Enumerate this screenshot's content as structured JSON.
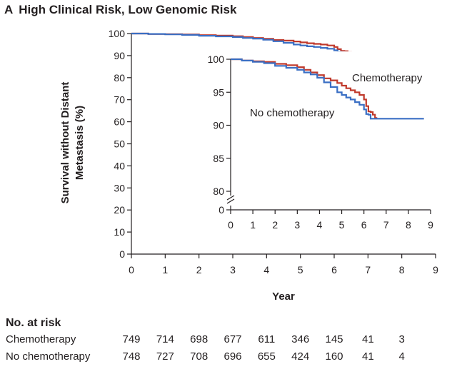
{
  "panel": {
    "letter": "A",
    "title": "High Clinical Risk, Low Genomic Risk"
  },
  "chart_data": {
    "type": "line",
    "title": "High Clinical Risk, Low Genomic Risk",
    "xlabel": "Year",
    "ylabel_lines": [
      "Survival without Distant",
      "Metastasis (%)"
    ],
    "xlim": [
      0,
      9
    ],
    "ylim": [
      0,
      100
    ],
    "xticks": [
      0,
      1,
      2,
      3,
      4,
      5,
      6,
      7,
      8,
      9
    ],
    "yticks": [
      0,
      10,
      20,
      30,
      40,
      50,
      60,
      70,
      80,
      90,
      100
    ],
    "grid": false,
    "colors": {
      "Chemotherapy": "#c0392b",
      "No chemotherapy": "#3a6fc4"
    },
    "series": [
      {
        "name": "Chemotherapy",
        "x": [
          0,
          0.5,
          1.0,
          1.5,
          2.0,
          2.5,
          3.0,
          3.3,
          3.6,
          3.9,
          4.2,
          4.5,
          4.8,
          5.0,
          5.2,
          5.4,
          5.6,
          5.8,
          6.0,
          6.1,
          6.2,
          6.3,
          6.4,
          6.5,
          6.6
        ],
        "y": [
          100,
          99.8,
          99.7,
          99.6,
          99.3,
          99.1,
          98.8,
          98.4,
          98.0,
          97.6,
          97.1,
          96.8,
          96.4,
          96.0,
          95.6,
          95.3,
          95.0,
          94.6,
          93.9,
          92.9,
          92.1,
          92.0,
          91.6,
          91.1,
          91.1
        ]
      },
      {
        "name": "No chemotherapy",
        "x": [
          0,
          0.5,
          1.0,
          1.5,
          2.0,
          2.5,
          3.0,
          3.3,
          3.6,
          3.9,
          4.2,
          4.5,
          4.8,
          5.0,
          5.2,
          5.4,
          5.6,
          5.8,
          6.0,
          6.1,
          6.2,
          6.3,
          6.5,
          7.0,
          7.5,
          8.0,
          8.5,
          8.7
        ],
        "y": [
          100,
          99.8,
          99.6,
          99.4,
          99.0,
          98.7,
          98.4,
          98.0,
          97.7,
          97.2,
          96.5,
          95.8,
          95.0,
          94.6,
          94.2,
          93.9,
          93.5,
          93.1,
          92.4,
          91.7,
          91.6,
          91.0,
          91.0,
          91.0,
          91.0,
          91.0,
          91.0,
          91.0
        ]
      }
    ],
    "inset": {
      "xlim": [
        0,
        9
      ],
      "ylim": [
        80,
        100
      ],
      "axis_break": true,
      "xticks": [
        0,
        1,
        2,
        3,
        4,
        5,
        6,
        7,
        8,
        9
      ],
      "yticks": [
        0,
        80,
        85,
        90,
        95,
        100
      ],
      "labels": [
        "Chemotherapy",
        "No chemotherapy"
      ]
    },
    "risk_table": {
      "title": "No. at risk",
      "rows": [
        {
          "label": "Chemotherapy",
          "values": [
            "749",
            "714",
            "698",
            "677",
            "611",
            "346",
            "145",
            "41",
            "3"
          ]
        },
        {
          "label": "No chemotherapy",
          "values": [
            "748",
            "727",
            "708",
            "696",
            "655",
            "424",
            "160",
            "41",
            "4"
          ]
        }
      ]
    }
  }
}
